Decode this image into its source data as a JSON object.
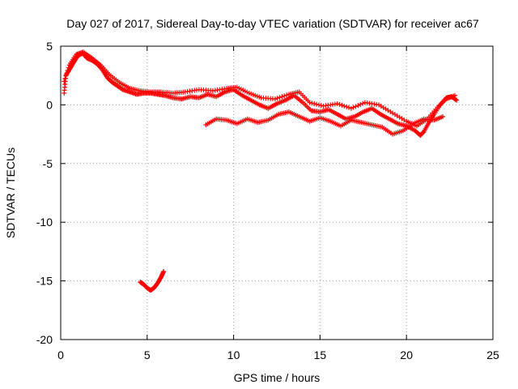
{
  "chart_data": {
    "type": "scatter",
    "title": "Day 027 of 2017, Sidereal Day-to-day VTEC variation (SDTVAR) for receiver ac67",
    "xlabel": "GPS time / hours",
    "ylabel": "SDTVAR / TECUs",
    "xlim": [
      0,
      25
    ],
    "ylim": [
      -20,
      5
    ],
    "xticks": [
      0,
      5,
      10,
      15,
      20,
      25
    ],
    "yticks": [
      5,
      0,
      -5,
      -10,
      -15,
      -20
    ],
    "xtick_labels": [
      "0",
      "5",
      "10",
      "15",
      "20",
      "25"
    ],
    "ytick_labels": [
      "5",
      "0",
      "-5",
      "-10",
      "-15",
      "-20"
    ],
    "grid": true,
    "marker": "+",
    "color": "#ff0000",
    "series": [
      {
        "name": "main-trace",
        "points": [
          [
            0.2,
            1.0
          ],
          [
            0.3,
            2.5
          ],
          [
            0.5,
            3.0
          ],
          [
            0.7,
            3.5
          ],
          [
            0.9,
            4.0
          ],
          [
            1.1,
            4.3
          ],
          [
            1.3,
            4.4
          ],
          [
            1.5,
            4.0
          ],
          [
            1.8,
            3.8
          ],
          [
            2.1,
            3.5
          ],
          [
            2.4,
            3.0
          ],
          [
            2.7,
            2.3
          ],
          [
            3.0,
            1.9
          ],
          [
            3.3,
            1.6
          ],
          [
            3.6,
            1.3
          ],
          [
            4.0,
            1.1
          ],
          [
            4.4,
            0.9
          ],
          [
            4.8,
            1.0
          ],
          [
            5.2,
            1.0
          ],
          [
            5.6,
            0.9
          ],
          [
            6.0,
            0.8
          ],
          [
            6.5,
            0.6
          ],
          [
            7.0,
            0.5
          ],
          [
            7.5,
            0.7
          ],
          [
            8.0,
            0.6
          ],
          [
            8.5,
            0.9
          ],
          [
            9.0,
            0.7
          ],
          [
            9.5,
            1.1
          ],
          [
            10.0,
            1.3
          ],
          [
            10.5,
            0.8
          ],
          [
            11.0,
            0.4
          ],
          [
            11.5,
            0.0
          ],
          [
            12.0,
            -0.3
          ],
          [
            12.5,
            0.1
          ],
          [
            13.0,
            0.4
          ],
          [
            13.5,
            0.8
          ],
          [
            14.0,
            0.2
          ],
          [
            14.5,
            -0.5
          ],
          [
            15.0,
            -0.6
          ],
          [
            15.5,
            -0.4
          ],
          [
            16.0,
            -0.8
          ],
          [
            16.5,
            -1.2
          ],
          [
            17.0,
            -1.0
          ],
          [
            17.5,
            -0.6
          ],
          [
            18.0,
            -0.3
          ],
          [
            18.5,
            -0.8
          ],
          [
            19.0,
            -1.2
          ],
          [
            19.5,
            -1.6
          ],
          [
            20.0,
            -1.8
          ],
          [
            20.5,
            -2.2
          ],
          [
            20.8,
            -2.6
          ],
          [
            21.0,
            -2.3
          ],
          [
            21.3,
            -1.5
          ],
          [
            21.6,
            -0.8
          ],
          [
            22.0,
            0.1
          ],
          [
            22.3,
            0.6
          ],
          [
            22.6,
            0.7
          ],
          [
            22.9,
            0.4
          ]
        ]
      },
      {
        "name": "upper-band",
        "points": [
          [
            0.2,
            2.0
          ],
          [
            0.5,
            3.4
          ],
          [
            0.9,
            4.3
          ],
          [
            1.3,
            4.5
          ],
          [
            1.8,
            4.0
          ],
          [
            2.3,
            3.4
          ],
          [
            2.8,
            2.6
          ],
          [
            3.4,
            1.9
          ],
          [
            4.0,
            1.4
          ],
          [
            4.6,
            1.2
          ],
          [
            5.2,
            1.1
          ],
          [
            5.8,
            1.1
          ],
          [
            6.5,
            1.0
          ],
          [
            7.2,
            1.1
          ],
          [
            8.0,
            1.3
          ],
          [
            8.8,
            1.2
          ],
          [
            9.6,
            1.4
          ],
          [
            10.2,
            1.5
          ],
          [
            10.9,
            1.0
          ],
          [
            11.6,
            0.6
          ],
          [
            12.4,
            0.5
          ],
          [
            13.2,
            0.9
          ],
          [
            13.8,
            1.1
          ],
          [
            14.4,
            0.2
          ],
          [
            15.2,
            -0.1
          ],
          [
            16.0,
            0.1
          ],
          [
            16.8,
            -0.3
          ],
          [
            17.6,
            0.2
          ],
          [
            18.4,
            0.0
          ],
          [
            19.2,
            -0.7
          ],
          [
            20.0,
            -1.4
          ],
          [
            20.6,
            -1.8
          ],
          [
            21.2,
            -1.2
          ],
          [
            21.8,
            -0.2
          ],
          [
            22.3,
            0.5
          ],
          [
            22.8,
            0.8
          ]
        ]
      },
      {
        "name": "lower-band",
        "points": [
          [
            8.4,
            -1.7
          ],
          [
            9.0,
            -1.2
          ],
          [
            9.6,
            -1.3
          ],
          [
            10.2,
            -1.6
          ],
          [
            10.8,
            -1.2
          ],
          [
            11.4,
            -1.5
          ],
          [
            12.0,
            -1.3
          ],
          [
            12.6,
            -0.8
          ],
          [
            13.2,
            -0.6
          ],
          [
            13.8,
            -1.0
          ],
          [
            14.4,
            -1.4
          ],
          [
            15.0,
            -1.1
          ],
          [
            15.6,
            -1.4
          ],
          [
            16.2,
            -1.8
          ],
          [
            16.8,
            -1.3
          ],
          [
            17.4,
            -1.5
          ],
          [
            18.0,
            -1.7
          ],
          [
            18.6,
            -1.9
          ],
          [
            19.2,
            -2.5
          ],
          [
            19.8,
            -2.2
          ],
          [
            20.4,
            -1.6
          ],
          [
            21.0,
            -1.2
          ],
          [
            21.6,
            -1.3
          ],
          [
            22.1,
            -1.0
          ]
        ]
      },
      {
        "name": "isolated-segment",
        "points": [
          [
            4.6,
            -15.1
          ],
          [
            4.8,
            -15.3
          ],
          [
            5.0,
            -15.6
          ],
          [
            5.2,
            -15.8
          ],
          [
            5.4,
            -15.6
          ],
          [
            5.6,
            -15.2
          ],
          [
            5.8,
            -14.7
          ],
          [
            5.95,
            -14.2
          ]
        ]
      }
    ]
  }
}
